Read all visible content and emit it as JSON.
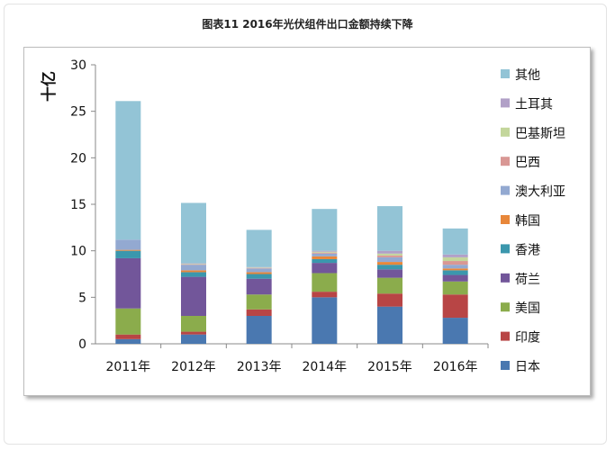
{
  "title": "图表11  2016年光伏组件出口金额持续下降",
  "chart_data": {
    "type": "bar",
    "stacked": true,
    "title": "图表11  2016年光伏组件出口金额持续下降",
    "ylabel": "十亿",
    "xlabel": "",
    "ylim": [
      0,
      30
    ],
    "yticks": [
      0,
      5,
      10,
      15,
      20,
      25,
      30
    ],
    "grid": false,
    "legend_position": "right",
    "categories": [
      "2011年",
      "2012年",
      "2013年",
      "2014年",
      "2015年",
      "2016年"
    ],
    "series": [
      {
        "name": "日本",
        "color": "#4a78b0",
        "values": [
          0.5,
          1.0,
          3.0,
          5.0,
          4.0,
          2.8
        ]
      },
      {
        "name": "印度",
        "color": "#b84545",
        "values": [
          0.5,
          0.3,
          0.7,
          0.6,
          1.4,
          2.5
        ]
      },
      {
        "name": "美国",
        "color": "#8bac4c",
        "values": [
          2.8,
          1.7,
          1.6,
          2.0,
          1.7,
          1.4
        ]
      },
      {
        "name": "荷兰",
        "color": "#72569a",
        "values": [
          5.4,
          4.2,
          1.7,
          1.1,
          0.9,
          0.7
        ]
      },
      {
        "name": "香港",
        "color": "#3b97ad",
        "values": [
          0.8,
          0.5,
          0.5,
          0.4,
          0.5,
          0.5
        ]
      },
      {
        "name": "韩国",
        "color": "#e8873a",
        "values": [
          0.1,
          0.2,
          0.2,
          0.3,
          0.3,
          0.2
        ]
      },
      {
        "name": "澳大利亚",
        "color": "#93a9d1",
        "values": [
          1.1,
          0.6,
          0.4,
          0.3,
          0.5,
          0.4
        ]
      },
      {
        "name": "巴西",
        "color": "#d99794",
        "values": [
          0.0,
          0.05,
          0.05,
          0.1,
          0.2,
          0.4
        ]
      },
      {
        "name": "巴基斯坦",
        "color": "#c3d69b",
        "values": [
          0.0,
          0.05,
          0.05,
          0.1,
          0.2,
          0.4
        ]
      },
      {
        "name": "土耳其",
        "color": "#b1a0c7",
        "values": [
          0.0,
          0.05,
          0.05,
          0.1,
          0.3,
          0.3
        ]
      },
      {
        "name": "其他",
        "color": "#93c4d6",
        "values": [
          14.9,
          6.5,
          4.0,
          4.5,
          4.8,
          2.8
        ]
      }
    ]
  }
}
